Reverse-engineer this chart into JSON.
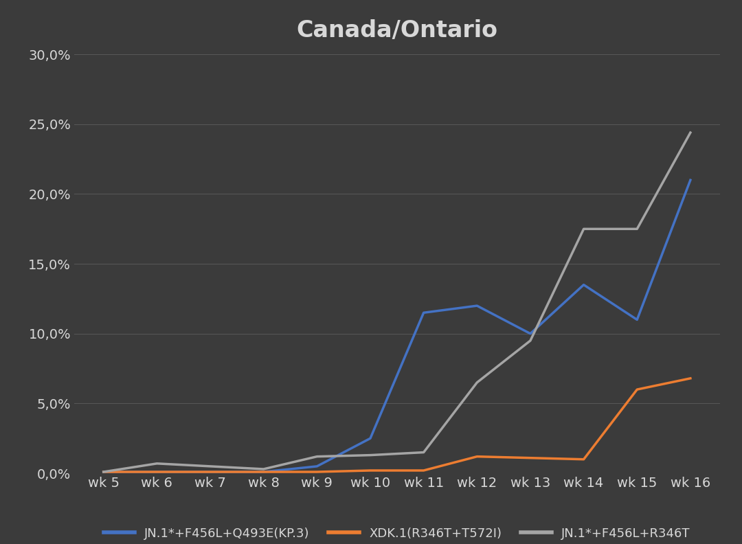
{
  "title": "Canada/Ontario",
  "weeks": [
    "wk 5",
    "wk 6",
    "wk 7",
    "wk 8",
    "wk 9",
    "wk 10",
    "wk 11",
    "wk 12",
    "wk 13",
    "wk 14",
    "wk 15",
    "wk 16"
  ],
  "series": [
    {
      "label": "JN.1*+F456L+Q493E(KP.3)",
      "color": "#4472C4",
      "values": [
        0.001,
        0.001,
        0.001,
        0.001,
        0.005,
        0.025,
        0.115,
        0.12,
        0.1,
        0.135,
        0.11,
        0.21
      ]
    },
    {
      "label": "XDK.1(R346T+T572I)",
      "color": "#ED7D31",
      "values": [
        0.001,
        0.001,
        0.001,
        0.001,
        0.001,
        0.002,
        0.002,
        0.012,
        0.011,
        0.01,
        0.06,
        0.068
      ]
    },
    {
      "label": "JN.1*+F456L+R346T",
      "color": "#A5A5A5",
      "values": [
        0.001,
        0.007,
        0.005,
        0.003,
        0.012,
        0.013,
        0.015,
        0.065,
        0.095,
        0.175,
        0.175,
        0.244
      ]
    }
  ],
  "ylim": [
    0,
    0.3
  ],
  "yticks": [
    0.0,
    0.05,
    0.1,
    0.15,
    0.2,
    0.25,
    0.3
  ],
  "ytick_labels": [
    "0,0%",
    "5,0%",
    "10,0%",
    "15,0%",
    "20,0%",
    "25,0%",
    "30,0%"
  ],
  "background_color": "#3b3b3b",
  "plot_background_color": "#3b3b3b",
  "grid_color": "#606060",
  "text_color": "#d8d8d8",
  "title_fontsize": 24,
  "tick_fontsize": 14,
  "legend_fontsize": 13,
  "line_width": 2.5
}
